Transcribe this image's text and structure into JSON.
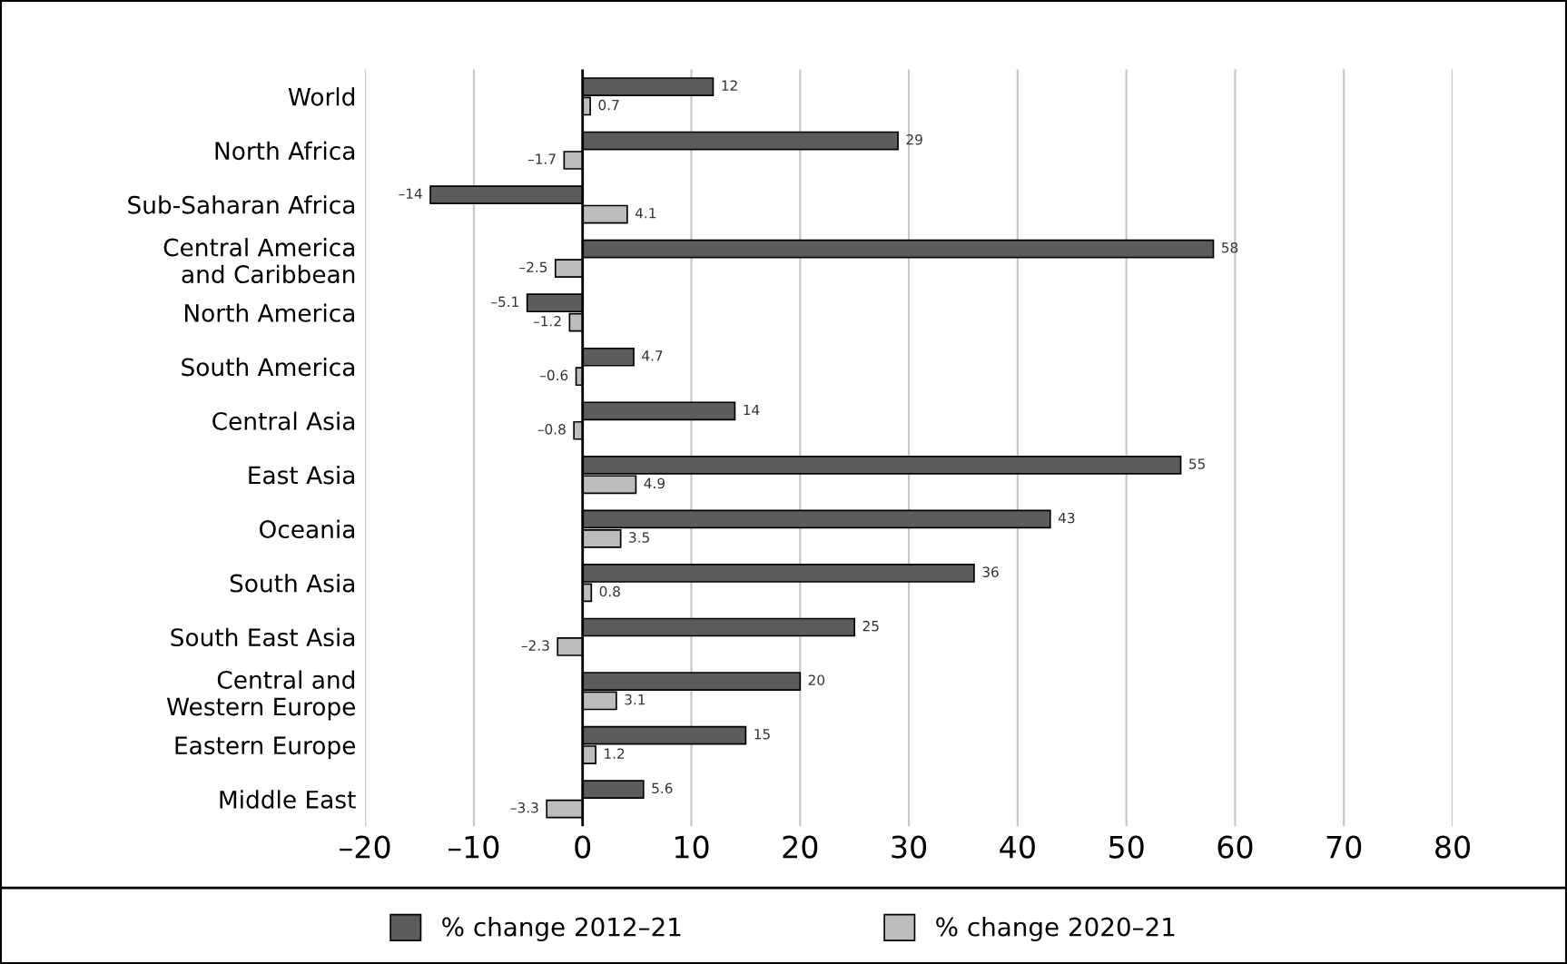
{
  "chart_data": {
    "type": "bar",
    "orientation": "horizontal",
    "categories": [
      "World",
      "North Africa",
      "Sub-Saharan Africa",
      "Central America\nand Caribbean",
      "North America",
      "South America",
      "Central Asia",
      "East Asia",
      "Oceania",
      "South Asia",
      "South East Asia",
      "Central and\nWestern Europe",
      "Eastern Europe",
      "Middle East"
    ],
    "series": [
      {
        "name": "% change 2012–21",
        "color": "#5c5c5c",
        "values": [
          12,
          29,
          -14,
          58,
          -5.1,
          4.7,
          14,
          55,
          43,
          36,
          25,
          20,
          15,
          5.6
        ],
        "value_labels": [
          "12",
          "29",
          "–14",
          "58",
          "–5.1",
          "4.7",
          "14",
          "55",
          "43",
          "36",
          "25",
          "20",
          "15",
          "5.6"
        ]
      },
      {
        "name": "% change 2020–21",
        "color": "#bdbdbd",
        "values": [
          0.7,
          -1.7,
          4.1,
          -2.5,
          -1.2,
          -0.6,
          -0.8,
          4.9,
          3.5,
          0.8,
          -2.3,
          3.1,
          1.2,
          -3.3
        ],
        "value_labels": [
          "0.7",
          "–1.7",
          "4.1",
          "–2.5",
          "–1.2",
          "–0.6",
          "–0.8",
          "4.9",
          "3.5",
          "0.8",
          "–2.3",
          "3.1",
          "1.2",
          "–3.3"
        ]
      }
    ],
    "xlim": [
      -20,
      80
    ],
    "xticks": [
      {
        "value": -20,
        "label": "–20"
      },
      {
        "value": -10,
        "label": "–10"
      },
      0,
      10,
      20,
      30,
      40,
      50,
      60,
      70,
      80
    ],
    "ref_lines": [
      {
        "axis": "x",
        "value": 0,
        "color": "#000000"
      }
    ],
    "grid": "x",
    "legend": "bottom"
  }
}
